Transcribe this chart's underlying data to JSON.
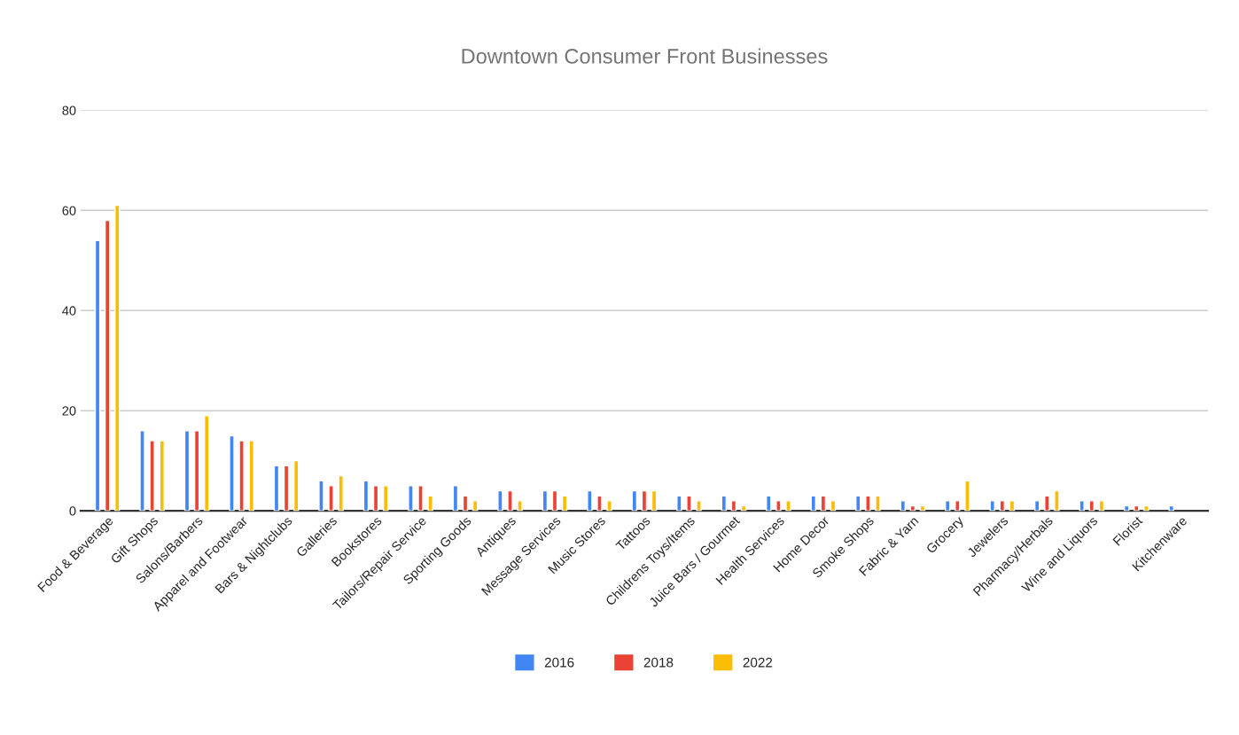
{
  "chart_data": {
    "type": "bar",
    "title": "Downtown Consumer Front Businesses",
    "categories": [
      "Food & Beverage",
      "Gift Shops",
      "Salons/Barbers",
      "Apparel and Footwear",
      "Bars & Nightclubs",
      "Galleries",
      "Bookstores",
      "Tailors/Repair Service",
      "Sporting Goods",
      "Antiques",
      "Message Services",
      "Music Stores",
      "Tattoos",
      "Childrens Toys/Items",
      "Juice Bars / Gourmet",
      "Health Services",
      "Home Decor",
      "Smoke Shops",
      "Fabric & Yarn",
      "Grocery",
      "Jewelers",
      "Pharmacy/Herbals",
      "Wine and Liquors",
      "Florist",
      "Kitchenware"
    ],
    "series": [
      {
        "name": "2016",
        "color": "#4285f4",
        "values": [
          54,
          16,
          16,
          15,
          9,
          6,
          6,
          5,
          5,
          4,
          4,
          4,
          4,
          3,
          3,
          3,
          3,
          3,
          2,
          2,
          2,
          2,
          2,
          1,
          1
        ]
      },
      {
        "name": "2018",
        "color": "#ea4335",
        "values": [
          58,
          14,
          16,
          14,
          9,
          5,
          5,
          5,
          3,
          4,
          4,
          3,
          4,
          3,
          2,
          2,
          3,
          3,
          1,
          2,
          2,
          3,
          2,
          1,
          null
        ]
      },
      {
        "name": "2022",
        "color": "#fbbc04",
        "values": [
          61,
          14,
          19,
          14,
          10,
          7,
          5,
          3,
          2,
          2,
          3,
          2,
          4,
          2,
          1,
          2,
          2,
          3,
          1,
          6,
          2,
          4,
          2,
          1,
          null
        ]
      }
    ],
    "ylim": [
      0,
      80
    ],
    "yticks": [
      0,
      20,
      40,
      60,
      80
    ],
    "grid": "y",
    "legend": "bottom"
  }
}
